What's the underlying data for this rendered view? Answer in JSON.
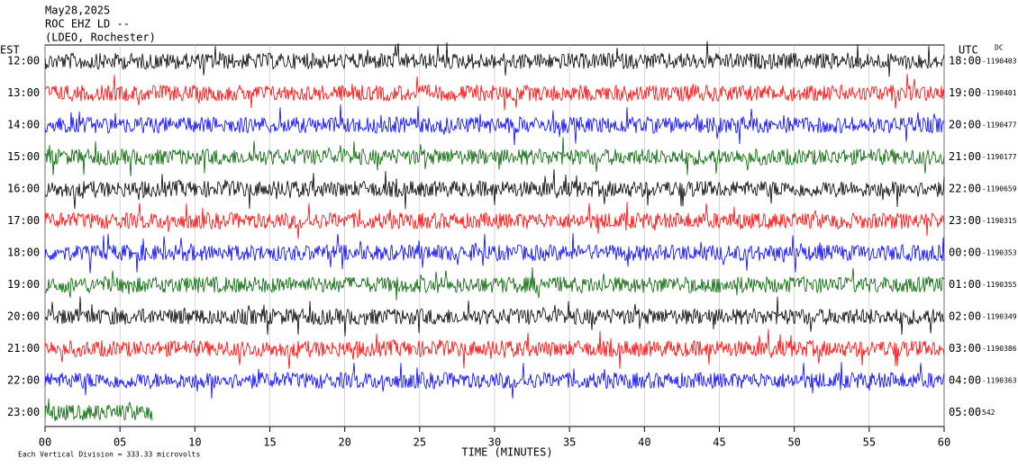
{
  "header": {
    "date": "May28,2025",
    "station": "ROC EHZ LD --",
    "location": "(LDEO, Rochester)"
  },
  "left_zone": "EST",
  "right_zone": "UTC",
  "dc_label": "DC",
  "rows": [
    {
      "est": "12:00",
      "utc": "18:00",
      "dc": "-1190403",
      "color": "#000000"
    },
    {
      "est": "13:00",
      "utc": "19:00",
      "dc": "-1190401",
      "color": "#ff0000"
    },
    {
      "est": "14:00",
      "utc": "20:00",
      "dc": "-1190477",
      "color": "#0000ff"
    },
    {
      "est": "15:00",
      "utc": "21:00",
      "dc": "-1190177",
      "color": "#006400"
    },
    {
      "est": "16:00",
      "utc": "22:00",
      "dc": "-1190659",
      "color": "#000000"
    },
    {
      "est": "17:00",
      "utc": "23:00",
      "dc": "-1190315",
      "color": "#ff0000"
    },
    {
      "est": "18:00",
      "utc": "00:00",
      "dc": "-1190353",
      "color": "#0000ff"
    },
    {
      "est": "19:00",
      "utc": "01:00",
      "dc": "-1190355",
      "color": "#006400"
    },
    {
      "est": "20:00",
      "utc": "02:00",
      "dc": "-1190349",
      "color": "#000000"
    },
    {
      "est": "21:00",
      "utc": "03:00",
      "dc": "-1190386",
      "color": "#ff0000"
    },
    {
      "est": "22:00",
      "utc": "04:00",
      "dc": "-1190363",
      "color": "#0000ff"
    },
    {
      "est": "23:00",
      "utc": "05:00",
      "dc": "542",
      "color": "#006400"
    }
  ],
  "x_axis": {
    "ticks": [
      "00",
      "05",
      "10",
      "15",
      "20",
      "25",
      "30",
      "35",
      "40",
      "45",
      "50",
      "55",
      "60"
    ],
    "label": "TIME (MINUTES)"
  },
  "footer": "Each Vertical Division =  333.33 microvolts"
}
